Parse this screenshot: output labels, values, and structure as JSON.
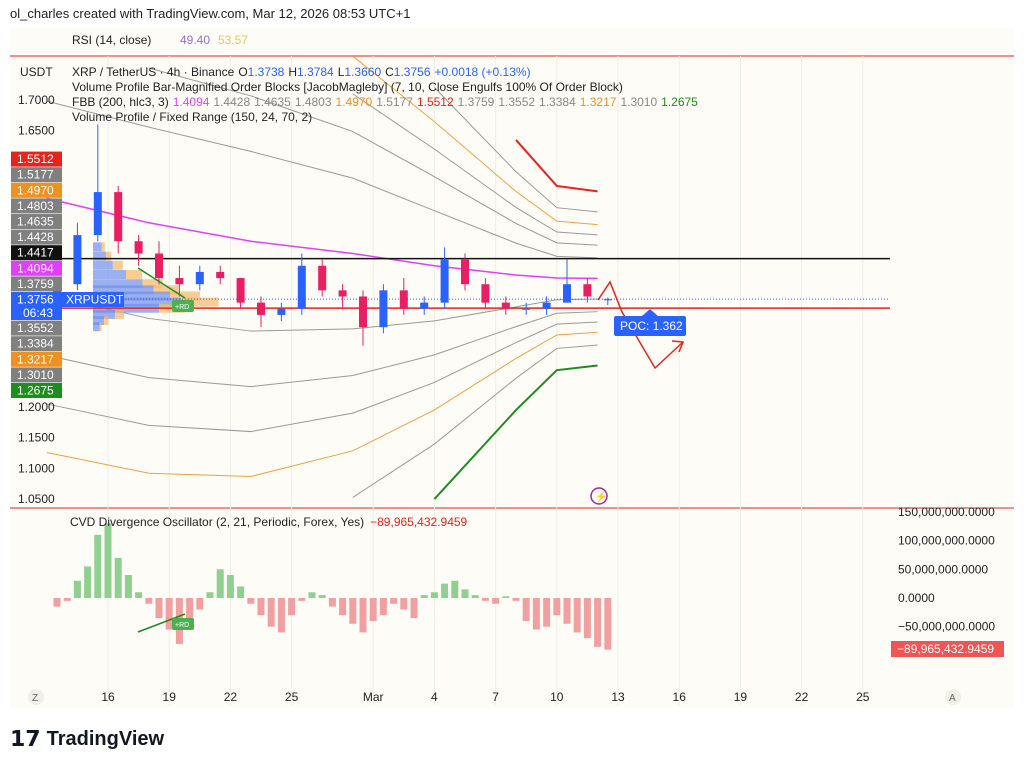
{
  "header": {
    "created": "ol_charles created with TradingView.com, Mar 12, 2026 08:53 UTC+1"
  },
  "rsi": {
    "label": "RSI (14, close)",
    "v1": "49.40",
    "v2": "53.57",
    "v1_color": "#8e6fd6",
    "v2_color": "#e8c65a"
  },
  "legend": {
    "currency": "USDT",
    "symbol": "XRP / TetherUS · 4h · Binance",
    "o_label": "O",
    "o": "1.3738",
    "h_label": "H",
    "h": "1.3784",
    "l_label": "L",
    "l": "1.3660",
    "c_label": "C",
    "c": "1.3756",
    "chg": "+0.0018 (+0.13%)",
    "ob": "Volume Profile Bar-Magnified Order Blocks [JacobMagleby] (7, 10, Close Engulfs 100% Of Order Block)",
    "fbb_label": "FBB (200, hlc3, 3)",
    "fbb_values": [
      {
        "v": "1.4094",
        "c": "#e040fb"
      },
      {
        "v": "1.4428",
        "c": "#888"
      },
      {
        "v": "1.4635",
        "c": "#888"
      },
      {
        "v": "1.4803",
        "c": "#888"
      },
      {
        "v": "1.4970",
        "c": "#f0901e"
      },
      {
        "v": "1.5177",
        "c": "#888"
      },
      {
        "v": "1.5512",
        "c": "#e8221c"
      },
      {
        "v": "1.3759",
        "c": "#888"
      },
      {
        "v": "1.3552",
        "c": "#888"
      },
      {
        "v": "1.3384",
        "c": "#888"
      },
      {
        "v": "1.3217",
        "c": "#f0901e"
      },
      {
        "v": "1.3010",
        "c": "#888"
      },
      {
        "v": "1.2675",
        "c": "#1e8c1e"
      }
    ],
    "vp": "Volume Profile / Fixed Range (150, 24, 70, 2)"
  },
  "price_axis": {
    "ticks": [
      "1.7000",
      "1.6500",
      "1.2000",
      "1.1500",
      "1.1000",
      "1.0500"
    ],
    "tick_values": [
      1.7,
      1.65,
      1.2,
      1.15,
      1.1,
      1.05
    ],
    "badges": [
      {
        "v": "1.5512",
        "p": 1.5512,
        "bg": "#e8221c"
      },
      {
        "v": "1.5177",
        "p": 1.5177,
        "bg": "#808080"
      },
      {
        "v": "1.4970",
        "p": 1.497,
        "bg": "#f0901e"
      },
      {
        "v": "1.4803",
        "p": 1.4803,
        "bg": "#808080"
      },
      {
        "v": "1.4635",
        "p": 1.4635,
        "bg": "#808080"
      },
      {
        "v": "1.4428",
        "p": 1.4428,
        "bg": "#808080"
      },
      {
        "v": "1.4417",
        "p": 1.4417,
        "bg": "#111111"
      },
      {
        "v": "1.4094",
        "p": 1.4094,
        "bg": "#e040fb"
      },
      {
        "v": "1.3759",
        "p": 1.3759,
        "bg": "#808080"
      },
      {
        "v": "1.3552",
        "p": 1.3552,
        "bg": "#808080"
      },
      {
        "v": "1.3384",
        "p": 1.3384,
        "bg": "#808080"
      },
      {
        "v": "1.3217",
        "p": 1.3217,
        "bg": "#f0901e"
      },
      {
        "v": "1.3010",
        "p": 1.301,
        "bg": "#808080"
      },
      {
        "v": "1.2675",
        "p": 1.2675,
        "bg": "#1e8c1e"
      }
    ],
    "current": {
      "v": "1.3756",
      "countdown": "06:43",
      "symbol": "XRPUSDT",
      "bg": "#2962ff"
    }
  },
  "date_axis": {
    "labels": [
      {
        "t": "16",
        "d": 3
      },
      {
        "t": "19",
        "d": 6
      },
      {
        "t": "22",
        "d": 9
      },
      {
        "t": "25",
        "d": 12
      },
      {
        "t": "Mar",
        "d": 16
      },
      {
        "t": "4",
        "d": 19
      },
      {
        "t": "7",
        "d": 22
      },
      {
        "t": "10",
        "d": 25
      },
      {
        "t": "13",
        "d": 28
      },
      {
        "t": "16",
        "d": 31
      },
      {
        "t": "19",
        "d": 34
      },
      {
        "t": "22",
        "d": 37
      },
      {
        "t": "25",
        "d": 40
      }
    ],
    "z": "Z",
    "a": "A"
  },
  "poc": {
    "label": "POC: 1.362",
    "value": 1.362
  },
  "rd_labels": [
    "+RD",
    "+RD"
  ],
  "cvd": {
    "label": "CVD Divergence Oscillator (2, 21, Periodic, Forex, Yes)",
    "value": "−89,965,432.9459",
    "ticks": [
      "150,000,000.0000",
      "100,000,000.0000",
      "50,000,000.0000",
      "0.0000",
      "−50,000,000.0000"
    ],
    "tick_values": [
      150,
      100,
      50,
      0,
      -50
    ]
  },
  "colors": {
    "up": "#2962ff",
    "down": "#e91e63",
    "hist_up": "#8fcf8f",
    "hist_down": "#f0a0a0",
    "level_black": "#111111",
    "level_red": "#e8221c",
    "basis": "#e040fb"
  },
  "chart_data": {
    "type": "candlestick",
    "x_unit": "date (Feb 13 – Mar 12, 2026)",
    "ylim": [
      1.03,
      1.72
    ],
    "dates": [
      "Feb 13",
      "Feb 14",
      "Feb 15",
      "Feb 16",
      "Feb 17",
      "Feb 18",
      "Feb 19",
      "Feb 20",
      "Feb 21",
      "Feb 22",
      "Feb 23",
      "Feb 24",
      "Feb 25",
      "Feb 26",
      "Feb 27",
      "Feb 28",
      "Mar 1",
      "Mar 2",
      "Mar 3",
      "Mar 4",
      "Mar 5",
      "Mar 6",
      "Mar 7",
      "Mar 8",
      "Mar 9",
      "Mar 10",
      "Mar 11",
      "Mar 12"
    ],
    "ohlc": [
      [
        1.37,
        1.41,
        1.36,
        1.4
      ],
      [
        1.4,
        1.5,
        1.39,
        1.48
      ],
      [
        1.48,
        1.66,
        1.47,
        1.55
      ],
      [
        1.55,
        1.56,
        1.45,
        1.47
      ],
      [
        1.47,
        1.48,
        1.43,
        1.45
      ],
      [
        1.45,
        1.47,
        1.4,
        1.41
      ],
      [
        1.41,
        1.43,
        1.38,
        1.4
      ],
      [
        1.4,
        1.43,
        1.39,
        1.42
      ],
      [
        1.42,
        1.43,
        1.4,
        1.41
      ],
      [
        1.41,
        1.41,
        1.36,
        1.37
      ],
      [
        1.37,
        1.38,
        1.33,
        1.35
      ],
      [
        1.35,
        1.37,
        1.34,
        1.36
      ],
      [
        1.36,
        1.45,
        1.35,
        1.43
      ],
      [
        1.43,
        1.44,
        1.38,
        1.39
      ],
      [
        1.39,
        1.4,
        1.36,
        1.38
      ],
      [
        1.38,
        1.39,
        1.3,
        1.33
      ],
      [
        1.33,
        1.4,
        1.32,
        1.39
      ],
      [
        1.39,
        1.41,
        1.35,
        1.36
      ],
      [
        1.36,
        1.38,
        1.35,
        1.37
      ],
      [
        1.37,
        1.46,
        1.36,
        1.44
      ],
      [
        1.44,
        1.45,
        1.39,
        1.4
      ],
      [
        1.4,
        1.41,
        1.36,
        1.37
      ],
      [
        1.37,
        1.38,
        1.35,
        1.36
      ],
      [
        1.36,
        1.37,
        1.35,
        1.36
      ],
      [
        1.36,
        1.38,
        1.35,
        1.37
      ],
      [
        1.37,
        1.44,
        1.37,
        1.4
      ],
      [
        1.4,
        1.41,
        1.37,
        1.38
      ],
      [
        1.3738,
        1.3784,
        1.366,
        1.3756
      ]
    ],
    "levels": [
      1.4417,
      1.361
    ],
    "fbb": {
      "dates": [
        "Feb 13",
        "Feb 18",
        "Feb 23",
        "Feb 28",
        "Mar 4",
        "Mar 8",
        "Mar 10",
        "Mar 12"
      ],
      "basis": [
        1.54,
        1.5,
        1.47,
        1.45,
        1.43,
        1.415,
        1.41,
        1.4094
      ],
      "band_width": [
        0.67,
        0.66,
        0.62,
        0.52,
        0.38,
        0.22,
        0.15,
        0.1418
      ],
      "ratios": [
        0.236,
        0.382,
        0.5,
        0.618,
        0.764,
        1
      ]
    },
    "volume_profile": {
      "prices": [
        1.46,
        1.445,
        1.43,
        1.415,
        1.4,
        1.39,
        1.38,
        1.37,
        1.36,
        1.35,
        1.34,
        1.33
      ],
      "up": [
        8,
        12,
        18,
        30,
        45,
        55,
        70,
        80,
        60,
        20,
        10,
        6
      ],
      "down": [
        6,
        10,
        20,
        32,
        40,
        50,
        60,
        75,
        52,
        18,
        9,
        4
      ]
    },
    "cvd_millions": [
      -15,
      -5,
      30,
      55,
      110,
      130,
      70,
      40,
      10,
      -10,
      -35,
      -55,
      -80,
      -40,
      -20,
      10,
      50,
      40,
      20,
      -10,
      -30,
      -50,
      -60,
      -30,
      -5,
      10,
      5,
      -15,
      -30,
      -45,
      -60,
      -40,
      -30,
      -10,
      -20,
      -35,
      5,
      10,
      25,
      30,
      15,
      5,
      -5,
      -10,
      3,
      -5,
      -40,
      -55,
      -50,
      -30,
      -45,
      -60,
      -70,
      -85,
      -90
    ]
  }
}
